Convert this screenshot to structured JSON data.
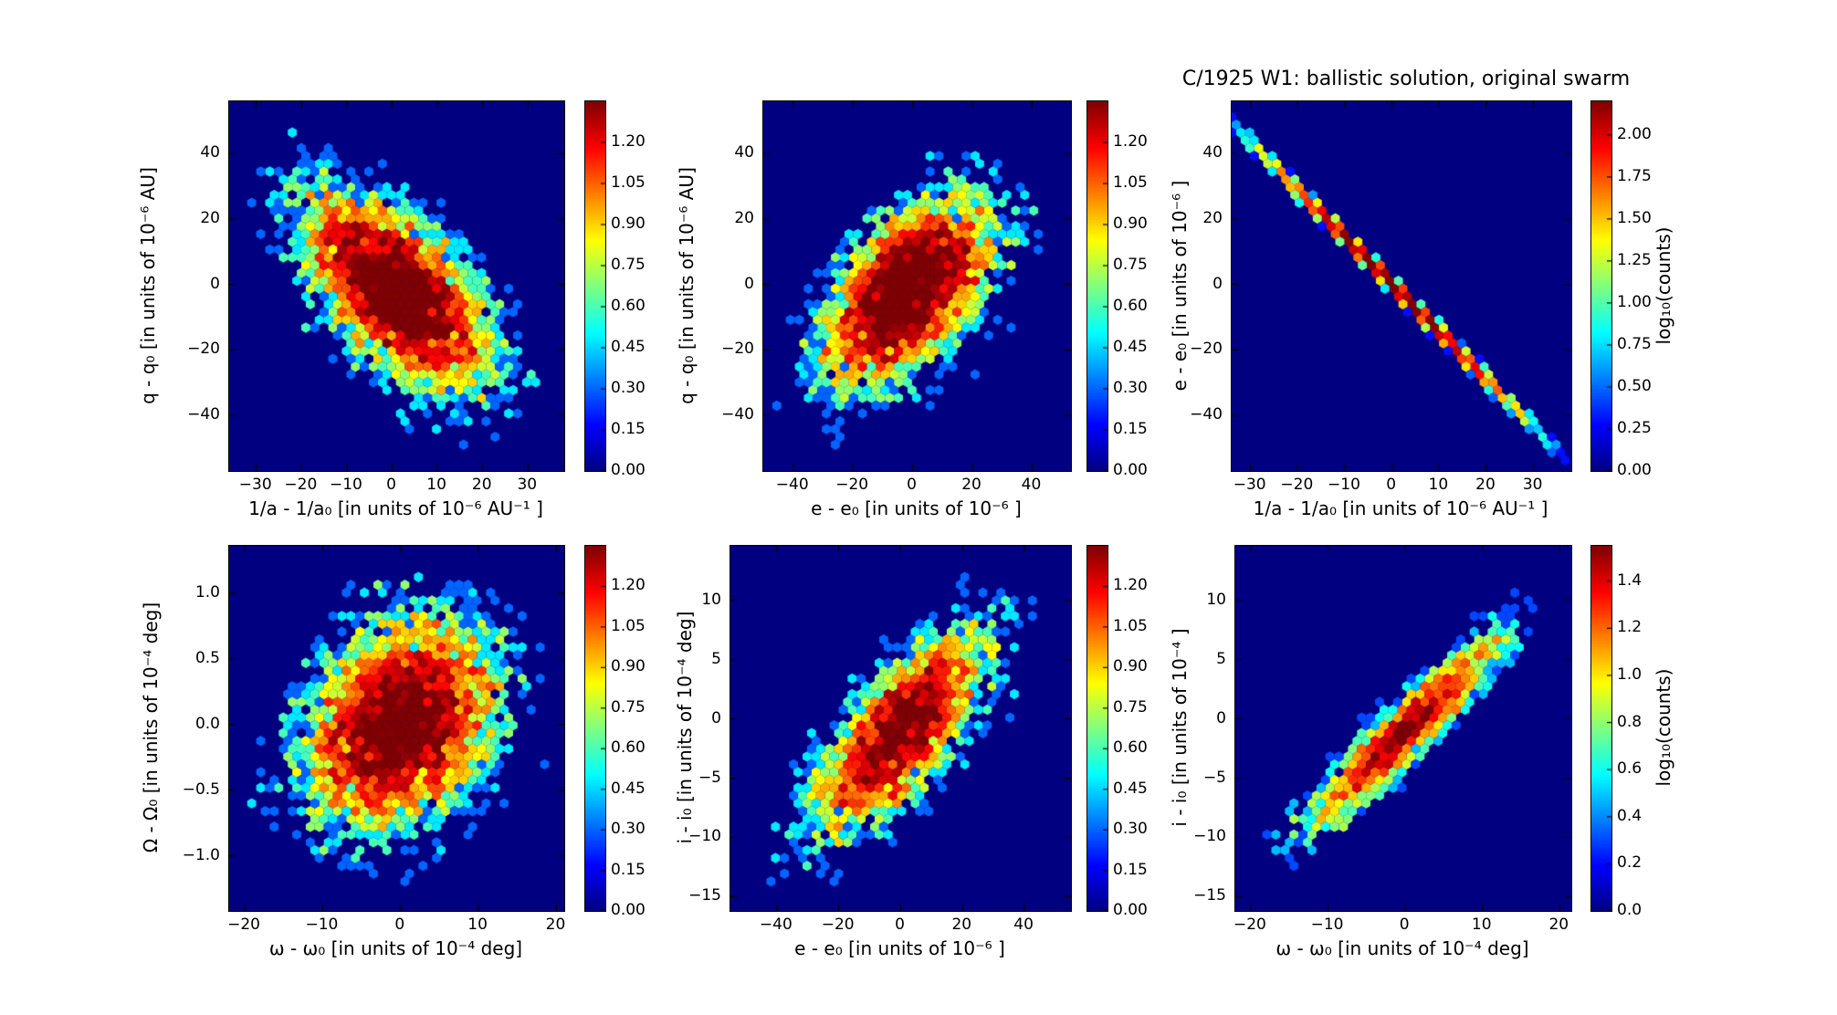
{
  "figure": {
    "title": "C/1925 W1:  ballistic solution, original swarm",
    "plot_background": "#000080",
    "colormap": "jet"
  },
  "chart_data": [
    {
      "type": "hexbin",
      "name": "inv-a-vs-q",
      "xlabel": "1/a - 1/a₀ [in units of 10⁻⁶ AU⁻¹ ]",
      "ylabel": "q - q₀ [in units of 10⁻⁶ AU]",
      "x_tick_values": [
        -30,
        -20,
        -10,
        0,
        10,
        20,
        30
      ],
      "x_tick_labels": [
        "−30",
        "−20",
        "−10",
        "0",
        "10",
        "20",
        "30"
      ],
      "y_tick_values": [
        40,
        20,
        0,
        -20,
        -40
      ],
      "y_tick_labels": [
        "40",
        "20",
        "0",
        "−20",
        "−40"
      ],
      "x_range": [
        -36,
        38
      ],
      "y_range": [
        -57,
        56
      ],
      "colorbar": {
        "tick_values": [
          1.2,
          1.05,
          0.9,
          0.75,
          0.6,
          0.45,
          0.3,
          0.15,
          0.0
        ],
        "tick_labels": [
          "1.20",
          "1.05",
          "0.90",
          "0.75",
          "0.60",
          "0.45",
          "0.30",
          "0.15",
          "0.00"
        ],
        "vmax": 1.35,
        "label": ""
      },
      "distribution": {
        "n": 6000,
        "cx": 1,
        "cy": -2,
        "sigma_x": 11,
        "sigma_y": 16,
        "rho": -0.6,
        "line": false,
        "line_slope": 0,
        "line_noise": 0,
        "seed": 101
      }
    },
    {
      "type": "hexbin",
      "name": "e-vs-q",
      "xlabel": "e - e₀ [in units of 10⁻⁶ ]",
      "ylabel": "q - q₀ [in units of 10⁻⁶ AU]",
      "x_tick_values": [
        -40,
        -20,
        0,
        20,
        40
      ],
      "x_tick_labels": [
        "−40",
        "−20",
        "0",
        "20",
        "40"
      ],
      "y_tick_values": [
        40,
        20,
        0,
        -20,
        -40
      ],
      "y_tick_labels": [
        "40",
        "20",
        "0",
        "−20",
        "−40"
      ],
      "x_range": [
        -50,
        53
      ],
      "y_range": [
        -57,
        56
      ],
      "colorbar": {
        "tick_values": [
          1.2,
          1.05,
          0.9,
          0.75,
          0.6,
          0.45,
          0.3,
          0.15,
          0.0
        ],
        "tick_labels": [
          "1.20",
          "1.05",
          "0.90",
          "0.75",
          "0.60",
          "0.45",
          "0.30",
          "0.15",
          "0.00"
        ],
        "vmax": 1.35,
        "label": ""
      },
      "distribution": {
        "n": 5500,
        "cx": -2,
        "cy": -2,
        "sigma_x": 15,
        "sigma_y": 15,
        "rho": 0.55,
        "line": false,
        "line_slope": 0,
        "line_noise": 0,
        "seed": 102
      }
    },
    {
      "type": "hexbin",
      "name": "inv-a-vs-e",
      "xlabel": "1/a - 1/a₀ [in units of 10⁻⁶ AU⁻¹ ]",
      "ylabel": "e - e₀ [in units of 10⁻⁶ ]",
      "x_tick_values": [
        -30,
        -20,
        -10,
        0,
        10,
        20,
        30
      ],
      "x_tick_labels": [
        "−30",
        "−20",
        "−10",
        "0",
        "10",
        "20",
        "30"
      ],
      "y_tick_values": [
        40,
        20,
        0,
        -20,
        -40
      ],
      "y_tick_labels": [
        "40",
        "20",
        "0",
        "−20",
        "−40"
      ],
      "x_range": [
        -34,
        38
      ],
      "y_range": [
        -57,
        56
      ],
      "colorbar": {
        "tick_values": [
          2.0,
          1.75,
          1.5,
          1.25,
          1.0,
          0.75,
          0.5,
          0.25,
          0.0
        ],
        "tick_labels": [
          "2.00",
          "1.75",
          "1.50",
          "1.25",
          "1.00",
          "0.75",
          "0.50",
          "0.25",
          "0.00"
        ],
        "vmax": 2.2,
        "label": "log₁₀(counts)"
      },
      "distribution": {
        "n": 5000,
        "cx": 0,
        "cy": 0,
        "sigma_x": 13,
        "sigma_y": 0,
        "rho": 0,
        "line": true,
        "line_slope": -1.45,
        "line_noise": 0.8,
        "seed": 103
      }
    },
    {
      "type": "hexbin",
      "name": "omega-vs-Omega",
      "xlabel": "ω - ω₀ [in units of 10⁻⁴ deg]",
      "ylabel": "Ω - Ω₀ [in units of 10⁻⁴ deg]",
      "x_tick_values": [
        -20,
        -10,
        0,
        10,
        20
      ],
      "x_tick_labels": [
        "−20",
        "−10",
        "0",
        "10",
        "20"
      ],
      "y_tick_values": [
        1.0,
        0.5,
        0.0,
        -0.5,
        -1.0
      ],
      "y_tick_labels": [
        "1.0",
        "0.5",
        "0.0",
        "−0.5",
        "−1.0"
      ],
      "x_range": [
        -22,
        21
      ],
      "y_range": [
        -1.42,
        1.36
      ],
      "colorbar": {
        "tick_values": [
          1.2,
          1.05,
          0.9,
          0.75,
          0.6,
          0.45,
          0.3,
          0.15,
          0.0
        ],
        "tick_labels": [
          "1.20",
          "1.05",
          "0.90",
          "0.75",
          "0.60",
          "0.45",
          "0.30",
          "0.15",
          "0.00"
        ],
        "vmax": 1.35,
        "label": ""
      },
      "distribution": {
        "n": 7000,
        "cx": 0,
        "cy": 0,
        "sigma_x": 6.5,
        "sigma_y": 0.42,
        "rho": 0.25,
        "line": false,
        "line_slope": 0,
        "line_noise": 0,
        "seed": 104
      }
    },
    {
      "type": "hexbin",
      "name": "e-vs-i",
      "xlabel": "e - e₀ [in units of 10⁻⁶ ]",
      "ylabel": "i - i₀ [in units of 10⁻⁴ deg]",
      "x_tick_values": [
        -40,
        -20,
        0,
        20,
        40
      ],
      "x_tick_labels": [
        "−40",
        "−20",
        "0",
        "20",
        "40"
      ],
      "y_tick_values": [
        10,
        5,
        0,
        -5,
        -10,
        -15
      ],
      "y_tick_labels": [
        "10",
        "5",
        "0",
        "−5",
        "−10",
        "−15"
      ],
      "x_range": [
        -55,
        55
      ],
      "y_range": [
        -16.2,
        14.6
      ],
      "colorbar": {
        "tick_values": [
          1.2,
          1.05,
          0.9,
          0.75,
          0.6,
          0.45,
          0.3,
          0.15,
          0.0
        ],
        "tick_labels": [
          "1.20",
          "1.05",
          "0.90",
          "0.75",
          "0.60",
          "0.45",
          "0.30",
          "0.15",
          "0.00"
        ],
        "vmax": 1.35,
        "label": ""
      },
      "distribution": {
        "n": 4000,
        "cx": 0,
        "cy": -1,
        "sigma_x": 15,
        "sigma_y": 4.5,
        "rho": 0.72,
        "line": false,
        "line_slope": 0,
        "line_noise": 0,
        "seed": 105
      }
    },
    {
      "type": "hexbin",
      "name": "omega-vs-i",
      "xlabel": "ω - ω₀ [in units of 10⁻⁴ deg]",
      "ylabel": "i - i₀ [in units of 10⁻⁴ ]",
      "x_tick_values": [
        -20,
        -10,
        0,
        10,
        20
      ],
      "x_tick_labels": [
        "−20",
        "−10",
        "0",
        "10",
        "20"
      ],
      "y_tick_values": [
        10,
        5,
        0,
        -5,
        -10,
        -15
      ],
      "y_tick_labels": [
        "10",
        "5",
        "0",
        "−5",
        "−10",
        "−15"
      ],
      "x_range": [
        -22,
        21.5
      ],
      "y_range": [
        -16.2,
        14.6
      ],
      "colorbar": {
        "tick_values": [
          1.4,
          1.2,
          1.0,
          0.8,
          0.6,
          0.4,
          0.2,
          0.0
        ],
        "tick_labels": [
          "1.4",
          "1.2",
          "1.0",
          "0.8",
          "0.6",
          "0.4",
          "0.2",
          "0.0"
        ],
        "vmax": 1.55,
        "label": "log₁₀(counts)"
      },
      "distribution": {
        "n": 2800,
        "cx": 0,
        "cy": -1,
        "sigma_x": 6.5,
        "sigma_y": 4.2,
        "rho": 0.93,
        "line": false,
        "line_slope": 0,
        "line_noise": 0,
        "seed": 106
      }
    }
  ]
}
